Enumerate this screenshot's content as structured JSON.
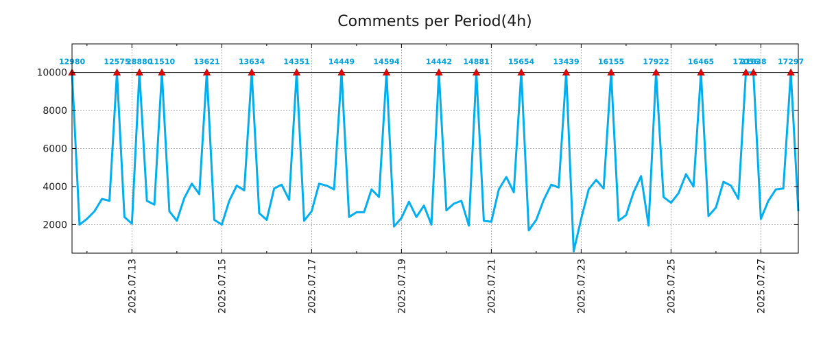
{
  "chart_data": {
    "type": "line",
    "title": "Comments per Period(4h)",
    "xlabel": "",
    "ylabel": "",
    "ylim": [
      500,
      11500
    ],
    "y_ticks": [
      2000,
      4000,
      6000,
      8000,
      10000
    ],
    "y_tick_labels": [
      "2000",
      "4000",
      "6000",
      "8000",
      "10000"
    ],
    "grid": true,
    "cap_value": 10000,
    "x_tick_labels": [
      "2025.07.13",
      "2025.07.15",
      "2025.07.17",
      "2025.07.19",
      "2025.07.21",
      "2025.07.23",
      "2025.07.25",
      "2025.07.27"
    ],
    "x_tick_index": [
      8,
      20,
      32,
      44,
      56,
      68,
      80,
      92
    ],
    "x_count": 98,
    "series": [
      {
        "name": "Comments per Period(4h)",
        "color": "#00aeef",
        "values": [
          10000,
          2000,
          2300,
          2700,
          3350,
          3250,
          10000,
          2400,
          2050,
          10000,
          3250,
          3050,
          10000,
          2700,
          2200,
          3400,
          4150,
          3600,
          10000,
          2250,
          2000,
          3250,
          4050,
          3800,
          10000,
          2600,
          2250,
          3900,
          4100,
          3300,
          10000,
          2200,
          2700,
          4150,
          4050,
          3850,
          10000,
          2400,
          2650,
          2650,
          3850,
          3450,
          10000,
          1900,
          2350,
          3200,
          2400,
          3000,
          2000,
          10000,
          2750,
          3100,
          3250,
          1950,
          10000,
          2200,
          2150,
          3850,
          4500,
          3700,
          10000,
          1700,
          2250,
          3300,
          4100,
          3950,
          10000,
          600,
          2300,
          3850,
          4350,
          3900,
          10000,
          2200,
          2500,
          3700,
          4550,
          1950,
          10000,
          3450,
          3150,
          3650,
          4650,
          4000,
          10000,
          2450,
          2900,
          4250,
          4050,
          3350,
          10000,
          10000,
          2300,
          3250,
          3850,
          3900,
          10000,
          2700
        ]
      }
    ],
    "peaks": [
      {
        "index": 0,
        "label": "12980"
      },
      {
        "index": 6,
        "label": "12575"
      },
      {
        "index": 9,
        "label": "28880"
      },
      {
        "index": 12,
        "label": "11510"
      },
      {
        "index": 18,
        "label": "13621"
      },
      {
        "index": 24,
        "label": "13634"
      },
      {
        "index": 30,
        "label": "14351"
      },
      {
        "index": 36,
        "label": "14449"
      },
      {
        "index": 42,
        "label": "14594"
      },
      {
        "index": 49,
        "label": "14442"
      },
      {
        "index": 54,
        "label": "14881"
      },
      {
        "index": 60,
        "label": "15654"
      },
      {
        "index": 66,
        "label": "13439"
      },
      {
        "index": 72,
        "label": "16155"
      },
      {
        "index": 78,
        "label": "17922"
      },
      {
        "index": 84,
        "label": "16465"
      },
      {
        "index": 90,
        "label": "17056"
      },
      {
        "index": 91,
        "label": "21638"
      },
      {
        "index": 96,
        "label": "17297"
      }
    ],
    "markers": {
      "color": "#e60000",
      "shape": "triangle"
    },
    "peak_label_color": "#00a2dc"
  }
}
